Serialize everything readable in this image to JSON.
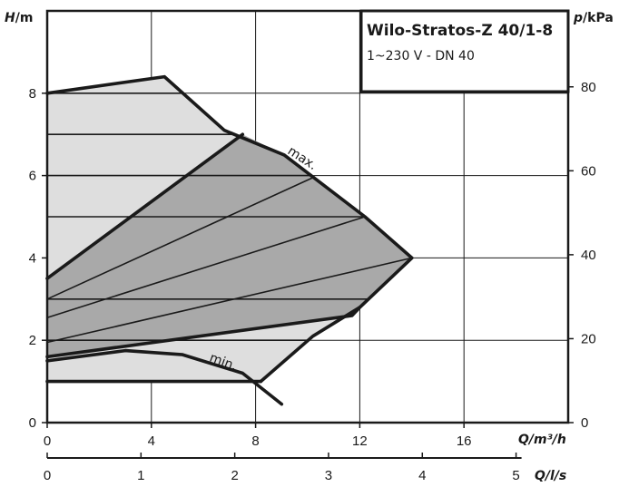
{
  "chart_data": {
    "type": "area",
    "title": "Wilo-Stratos-Z 40/1-8",
    "subtitle": "1~230 V - DN 40",
    "y_left": {
      "label_main": "H",
      "label_unit": "/m",
      "range": [
        0,
        10
      ],
      "ticks": [
        0,
        2,
        4,
        6,
        8
      ]
    },
    "y_right": {
      "label_main": "p",
      "label_unit": "/kPa",
      "ticks": [
        0,
        20,
        40,
        60,
        80
      ],
      "kpa_per_m": 9.81
    },
    "x_q": {
      "label": "Q/m³/h",
      "range": [
        0,
        20
      ],
      "ticks": [
        0,
        4,
        8,
        12,
        16
      ]
    },
    "x_ls": {
      "label": "Q/l/s",
      "ticks": [
        0,
        1,
        2,
        3,
        4,
        5
      ],
      "m3h_per_ls": 3.6
    },
    "grid": true,
    "regions": [
      {
        "name": "outer_range",
        "fill": "#dedede",
        "points": [
          [
            0,
            8
          ],
          [
            4.5,
            8.4
          ],
          [
            6.8,
            7.1
          ],
          [
            9.1,
            6.5
          ],
          [
            12.2,
            5.0
          ],
          [
            14,
            4.0
          ],
          [
            12,
            2.8
          ],
          [
            10.2,
            2.1
          ],
          [
            8.2,
            1.0
          ],
          [
            0,
            1.0
          ]
        ]
      },
      {
        "name": "control_range",
        "fill": "#a9a9a9",
        "points": [
          [
            0,
            3.5
          ],
          [
            7.5,
            7.0
          ],
          [
            9.1,
            6.5
          ],
          [
            12.2,
            5.0
          ],
          [
            14,
            4.0
          ],
          [
            12,
            2.8
          ],
          [
            11.7,
            2.6
          ],
          [
            0,
            1.6
          ]
        ]
      }
    ],
    "curves": [
      {
        "name": "max.",
        "points": [
          [
            0,
            8
          ],
          [
            4.5,
            8.4
          ],
          [
            6.8,
            7.1
          ],
          [
            9.1,
            6.5
          ],
          [
            12.2,
            5.0
          ],
          [
            14,
            4.0
          ],
          [
            12,
            2.8
          ],
          [
            10.2,
            2.1
          ],
          [
            8.2,
            1.0
          ]
        ]
      },
      {
        "name": "min.",
        "points": [
          [
            0,
            1.5
          ],
          [
            3,
            1.75
          ],
          [
            5.2,
            1.65
          ],
          [
            7.5,
            1.2
          ],
          [
            9,
            0.45
          ]
        ]
      },
      {
        "name": "outer_bottom",
        "points": [
          [
            0,
            1.0
          ],
          [
            8.2,
            1.0
          ]
        ]
      },
      {
        "name": "control_upper",
        "points": [
          [
            0,
            3.5
          ],
          [
            7.5,
            7.0
          ]
        ]
      },
      {
        "name": "control_lower",
        "points": [
          [
            0,
            1.6
          ],
          [
            11.7,
            2.6
          ],
          [
            12,
            2.8
          ]
        ]
      },
      {
        "name": "setting_1",
        "points": [
          [
            0,
            1.95
          ],
          [
            14,
            4.0
          ]
        ]
      },
      {
        "name": "setting_2",
        "points": [
          [
            0,
            2.55
          ],
          [
            12.2,
            5.0
          ]
        ]
      },
      {
        "name": "setting_3",
        "points": [
          [
            0,
            3.0
          ],
          [
            10.2,
            5.95
          ]
        ]
      }
    ],
    "horizontal_settings": [
      8,
      7,
      6,
      5,
      3,
      2
    ],
    "annotations": [
      {
        "text": "max.",
        "x": 9.2,
        "y": 6.55,
        "rotation": 33
      },
      {
        "text": "min.",
        "x": 6.2,
        "y": 1.5,
        "rotation": 20
      }
    ]
  }
}
